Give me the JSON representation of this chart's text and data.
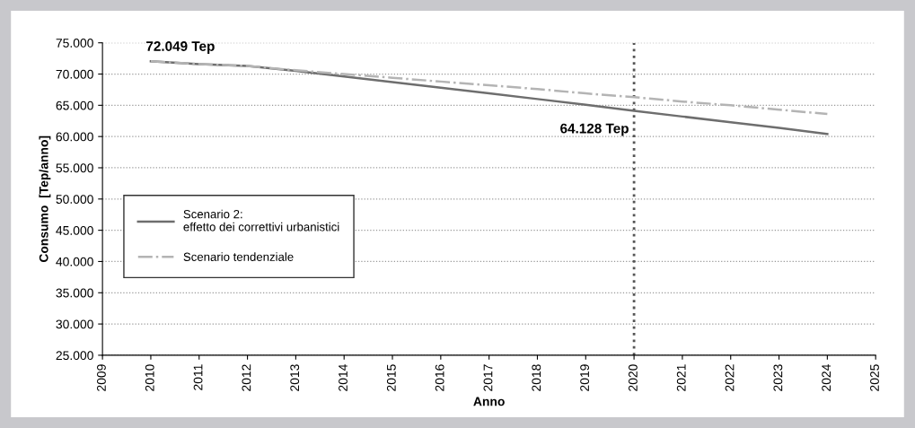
{
  "chart_data": {
    "type": "line",
    "xlabel": "Anno",
    "ylabel": "Consumo  [Tep/anno]",
    "x": [
      2010,
      2011,
      2012,
      2013,
      2014,
      2015,
      2016,
      2017,
      2018,
      2019,
      2020,
      2021,
      2022,
      2023,
      2024
    ],
    "series": [
      {
        "name": "Scenario 2:\neffetto dei correttivi urbanistici",
        "color": "#6e6e6e",
        "line_style": "solid",
        "values": [
          72049,
          71600,
          71300,
          70500,
          69600,
          68700,
          67800,
          66900,
          66000,
          65100,
          64128,
          63200,
          62300,
          61400,
          60400
        ]
      },
      {
        "name": "Scenario tendenziale",
        "color": "#b4b4b4",
        "line_style": "dashdot",
        "values": [
          72049,
          71600,
          71300,
          70600,
          70000,
          69400,
          68800,
          68200,
          67600,
          66900,
          66300,
          65600,
          65000,
          64300,
          63600
        ]
      }
    ],
    "xlim": [
      2009,
      2025
    ],
    "xticks": [
      2009,
      2010,
      2011,
      2012,
      2013,
      2014,
      2015,
      2016,
      2017,
      2018,
      2019,
      2020,
      2021,
      2022,
      2023,
      2024,
      2025
    ],
    "ylim": [
      25000,
      75000
    ],
    "yticks": [
      {
        "value": 25000,
        "label": "25.000"
      },
      {
        "value": 30000,
        "label": "30.000"
      },
      {
        "value": 35000,
        "label": "35.000"
      },
      {
        "value": 40000,
        "label": "40.000"
      },
      {
        "value": 45000,
        "label": "45.000"
      },
      {
        "value": 50000,
        "label": "50.000"
      },
      {
        "value": 55000,
        "label": "55.000"
      },
      {
        "value": 60000,
        "label": "60.000"
      },
      {
        "value": 65000,
        "label": "65.000"
      },
      {
        "value": 70000,
        "label": "70.000"
      },
      {
        "value": 75000,
        "label": "75.000"
      }
    ],
    "annotations": [
      {
        "text": "72.049 Tep",
        "x": 2010,
        "y": 72049
      },
      {
        "text": "64.128 Tep",
        "x": 2020,
        "y": 64128
      }
    ],
    "ref_lines": [
      {
        "axis": "x",
        "value": 2020,
        "label": null,
        "color": "#555555",
        "line_style": "dotted"
      }
    ],
    "grid": "y",
    "legend": "left",
    "marker": "none"
  }
}
